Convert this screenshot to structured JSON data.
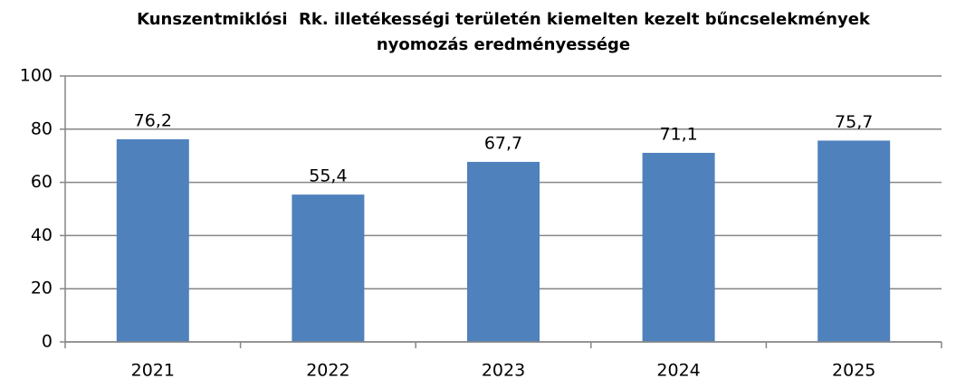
{
  "chart_data": {
    "type": "bar",
    "title": [
      "Kunszentmiklósi  Rk. illetékességi területén kiemelten kezelt bűncselekmények",
      "nyomozás eredményessége"
    ],
    "categories": [
      "2021",
      "2022",
      "2023",
      "2024",
      "2025"
    ],
    "values": [
      76.2,
      55.4,
      67.7,
      71.1,
      75.7
    ],
    "value_labels": [
      "76,2",
      "55,4",
      "67,7",
      "71,1",
      "75,7"
    ],
    "color": "#4f81bd",
    "ylim": [
      0,
      100
    ],
    "yticks": [
      0,
      20,
      40,
      60,
      80,
      100
    ],
    "grid": true
  }
}
